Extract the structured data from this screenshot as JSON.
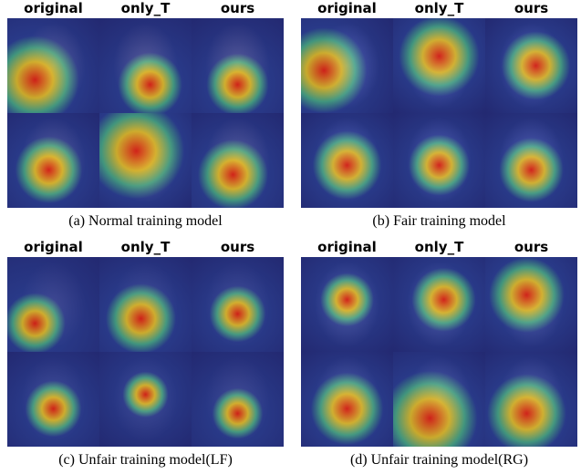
{
  "panels": [
    {
      "columns": [
        "original",
        "only_T",
        "ours"
      ],
      "caption": "(a) Normal training model"
    },
    {
      "columns": [
        "original",
        "only_T",
        "ours"
      ],
      "caption": "(b) Fair training model"
    },
    {
      "columns": [
        "original",
        "only_T",
        "ours"
      ],
      "caption": "(c) Unfair training model(LF)"
    },
    {
      "columns": [
        "original",
        "only_T",
        "ours"
      ],
      "caption": "(d) Unfair training model(RG)"
    }
  ]
}
